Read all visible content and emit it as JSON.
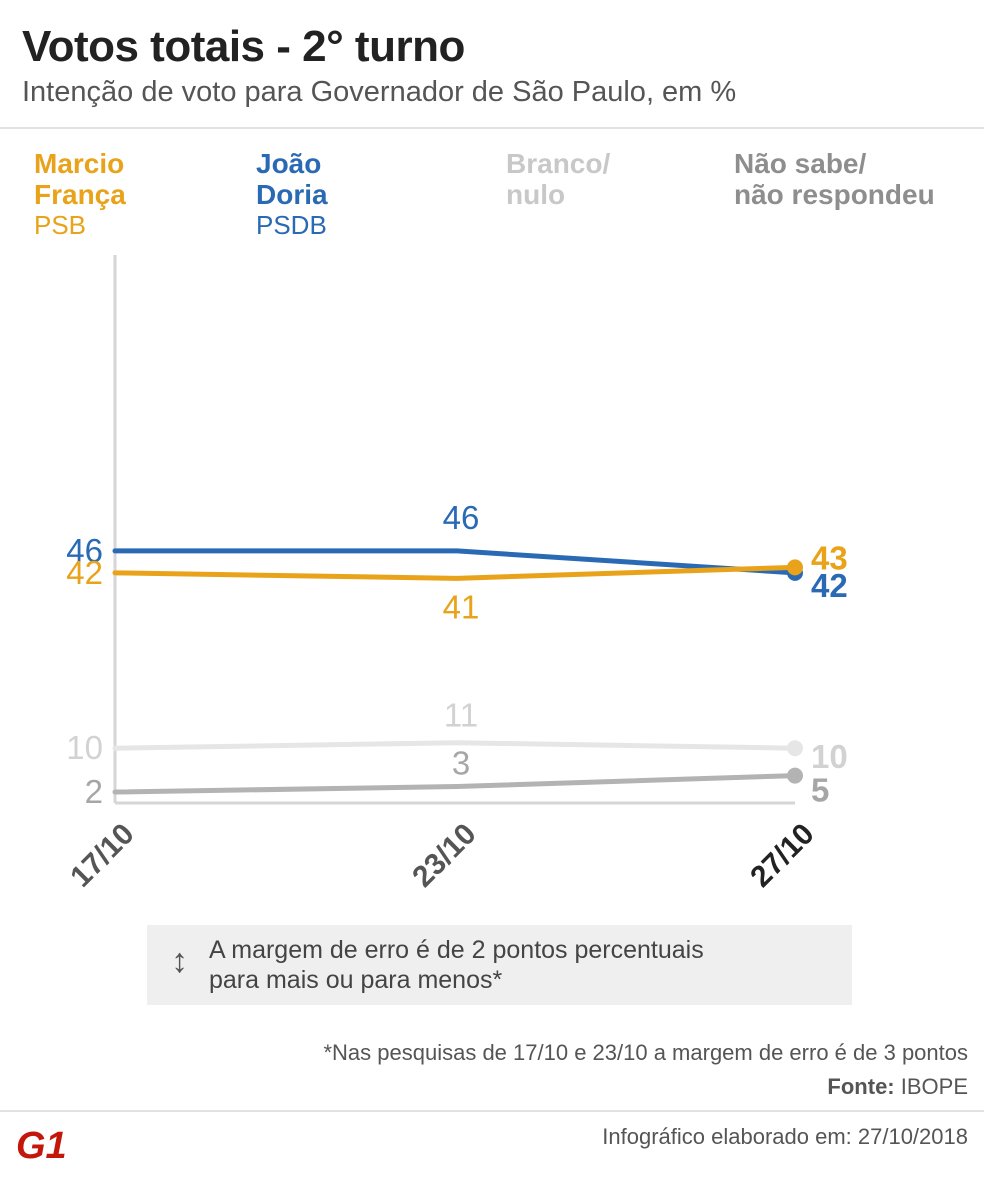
{
  "header": {
    "title": "Votos totais - 2° turno",
    "subtitle": "Intenção de voto para Governador de São Paulo, em %"
  },
  "legend": [
    {
      "name": "Marcio\nFrança",
      "party": "PSB",
      "color": "#e8a31a"
    },
    {
      "name": "João\nDoria",
      "party": "PSDB",
      "color": "#2a6ab5"
    },
    {
      "name": "Branco/\nnulo",
      "party": "",
      "color": "#c8c8c8"
    },
    {
      "name": "Não sabe/\nnão respondeu",
      "party": "",
      "color": "#8e8e8e"
    }
  ],
  "chart_data": {
    "type": "line",
    "x": [
      "17/10",
      "23/10",
      "27/10"
    ],
    "ylim": [
      0,
      100
    ],
    "grid": false,
    "legend_position": "top",
    "series": [
      {
        "name": "João Doria",
        "values": [
          46,
          46,
          42
        ],
        "color": "#2a6ab5",
        "label_color": "#2a6ab5"
      },
      {
        "name": "Marcio França",
        "values": [
          42,
          41,
          43
        ],
        "color": "#e8a31a",
        "label_color": "#e8a31a"
      },
      {
        "name": "Branco/nulo",
        "values": [
          10,
          11,
          10
        ],
        "color": "#e6e6e6",
        "label_color": "#d2d2d2"
      },
      {
        "name": "Não sabe/não respondeu",
        "values": [
          2,
          3,
          5
        ],
        "color": "#b3b3b3",
        "label_color": "#a6a6a6"
      }
    ]
  },
  "note": {
    "icon": "vertical-arrow-icon",
    "text": "A margem de erro é de 2 pontos percentuais\npara mais ou para menos*"
  },
  "footer": {
    "footnote": "*Nas pesquisas de 17/10 e 23/10 a margem de erro é de 3 pontos",
    "source_label": "Fonte:",
    "source_value": "IBOPE",
    "credits": "Infográfico elaborado em: 27/10/2018",
    "logo_text": "G1",
    "logo_color": "#c4170c"
  }
}
